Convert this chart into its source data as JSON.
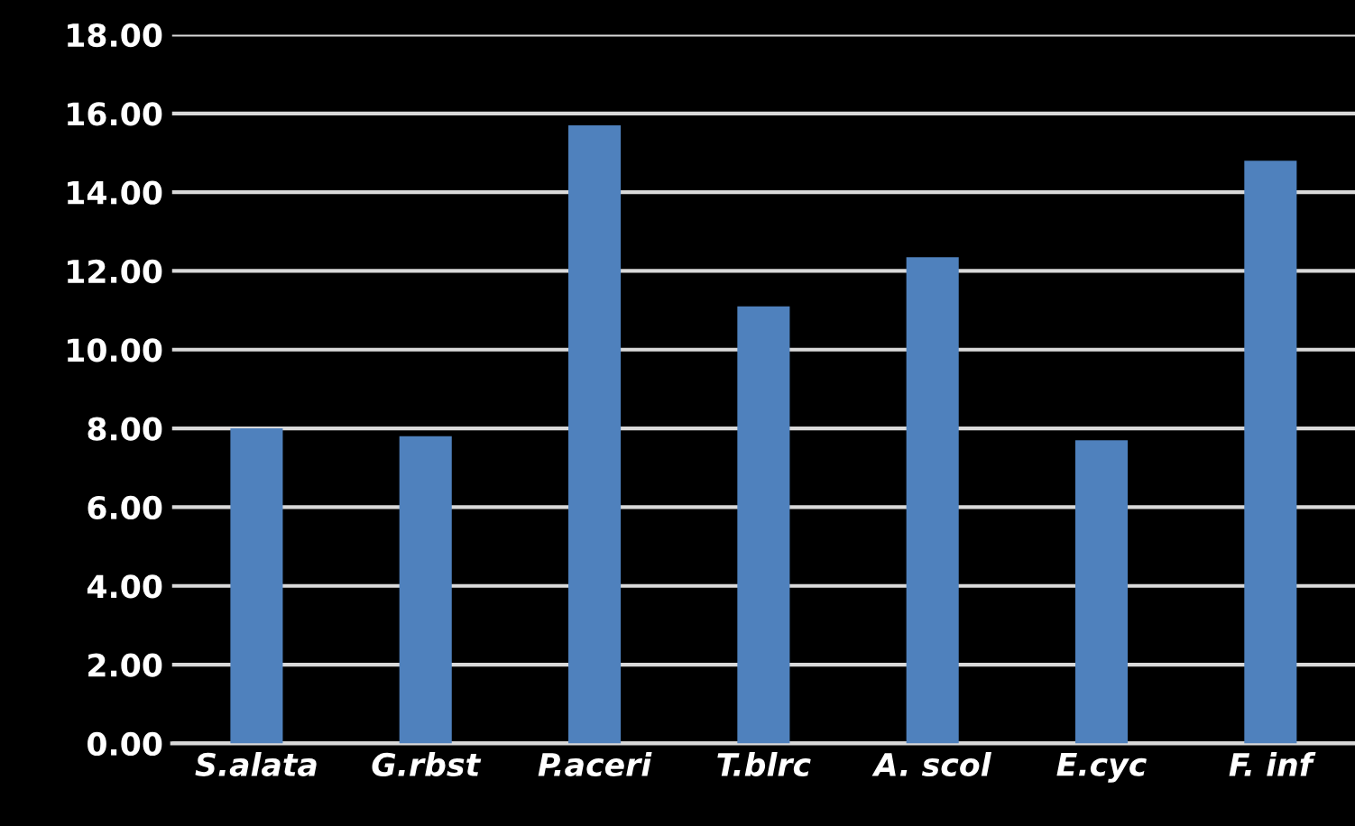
{
  "chart_data": {
    "type": "bar",
    "categories": [
      "S.alata",
      "G.rbst",
      "P.aceri",
      "T.blrc",
      "A. scol",
      "E.cyc",
      "F. inf"
    ],
    "values": [
      8.0,
      7.8,
      15.7,
      11.1,
      12.35,
      7.7,
      14.8
    ],
    "color": "#4f81bd",
    "ylim": [
      0,
      18
    ],
    "yticks": [
      {
        "value": 0,
        "label": "0.00"
      },
      {
        "value": 2,
        "label": "2.00"
      },
      {
        "value": 4,
        "label": "4.00"
      },
      {
        "value": 6,
        "label": "6.00"
      },
      {
        "value": 8,
        "label": "8.00"
      },
      {
        "value": 10,
        "label": "10.00"
      },
      {
        "value": 12,
        "label": "12.00"
      },
      {
        "value": 14,
        "label": "14.00"
      },
      {
        "value": 16,
        "label": "16.00"
      },
      {
        "value": 18,
        "label": "18.00"
      }
    ],
    "grid": "y"
  }
}
